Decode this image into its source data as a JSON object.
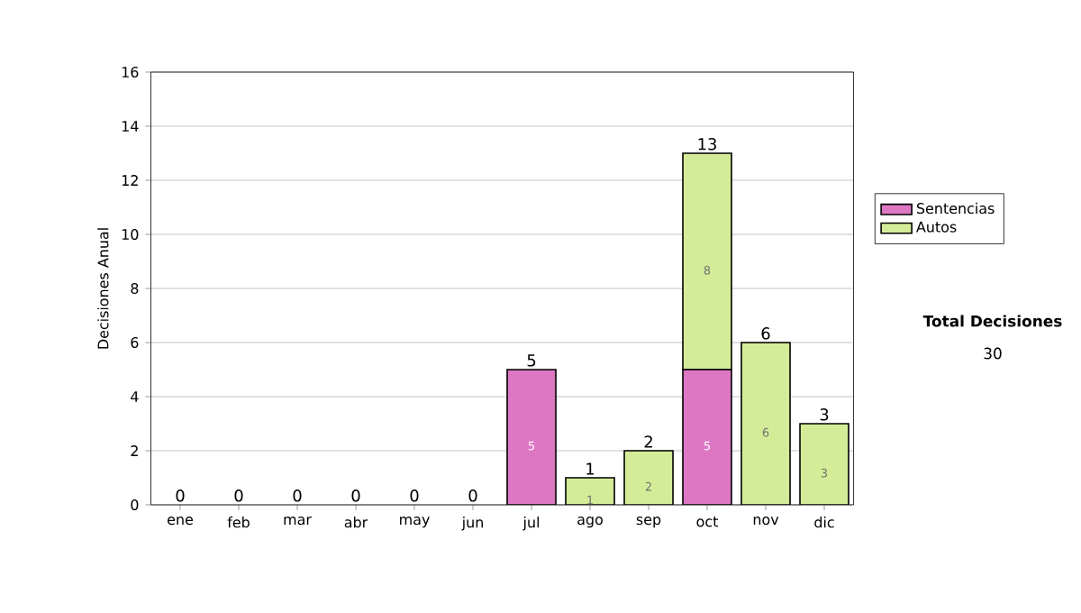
{
  "chart_data": {
    "type": "bar",
    "stacked": true,
    "ylabel": "Decisiones Anual",
    "categories": [
      "ene",
      "feb",
      "mar",
      "abr",
      "may",
      "jun",
      "jul",
      "ago",
      "sep",
      "oct",
      "nov",
      "dic"
    ],
    "series": [
      {
        "name": "Sentencias",
        "color": "#dd77c4",
        "values": [
          0,
          0,
          0,
          0,
          0,
          0,
          5,
          0,
          0,
          5,
          0,
          0
        ],
        "value_labels": [
          null,
          null,
          null,
          null,
          null,
          null,
          "5",
          null,
          null,
          "5",
          null,
          null
        ]
      },
      {
        "name": "Autos",
        "color": "#d4ec98",
        "values": [
          0,
          0,
          0,
          0,
          0,
          0,
          0,
          1,
          2,
          8,
          6,
          3
        ],
        "value_labels": [
          null,
          null,
          null,
          null,
          null,
          null,
          null,
          "1",
          "2",
          "8",
          "6",
          "3"
        ]
      }
    ],
    "totals": [
      "0",
      "0",
      "0",
      "0",
      "0",
      "0",
      "5",
      "1",
      "2",
      "13",
      "6",
      "3"
    ],
    "ylim": [
      0,
      16
    ],
    "yticks": [
      0,
      2,
      4,
      6,
      8,
      10,
      12,
      14,
      16
    ],
    "grid": "y",
    "legend": "right",
    "annotations": [
      "**Total Decisiones**",
      "30"
    ]
  }
}
